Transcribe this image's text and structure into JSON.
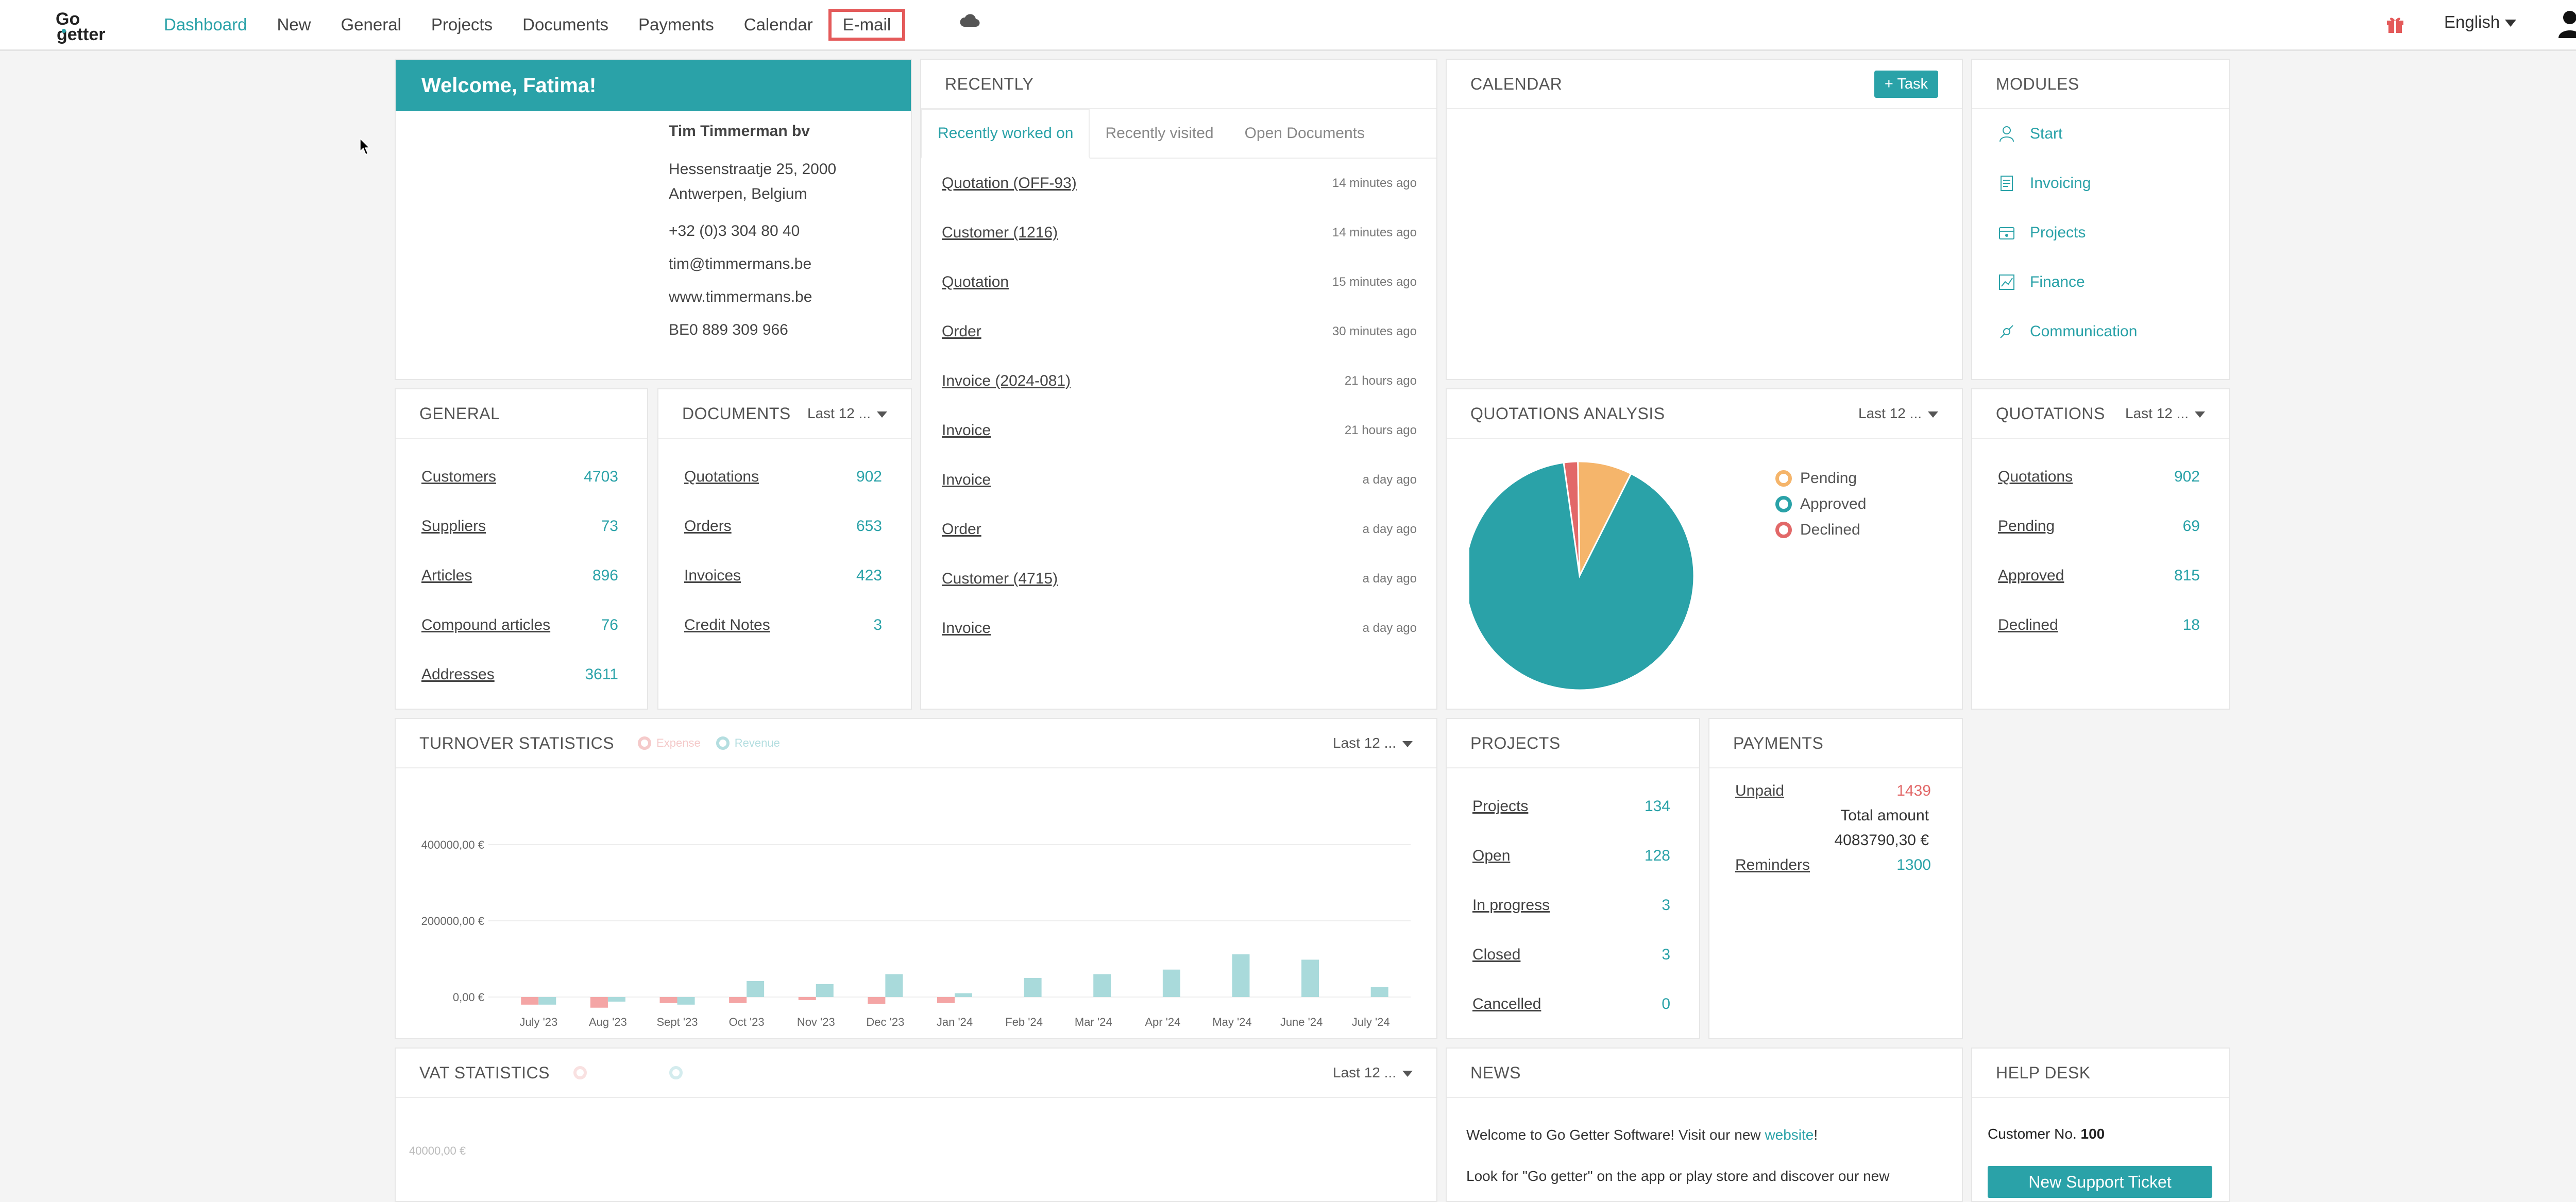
{
  "nav": {
    "items": [
      {
        "label": "Dashboard",
        "active": true
      },
      {
        "label": "New"
      },
      {
        "label": "General"
      },
      {
        "label": "Projects"
      },
      {
        "label": "Documents"
      },
      {
        "label": "Payments"
      },
      {
        "label": "Calendar"
      },
      {
        "label": "E-mail",
        "highlighted": true
      }
    ],
    "language": "English",
    "icons": [
      "cloud-icon",
      "gift-icon",
      "user-icon"
    ]
  },
  "welcome": {
    "title": "Welcome, Fatima!",
    "company": "Tim Timmerman bv",
    "address_line1": "Hessenstraatje 25, 2000",
    "address_line2": "Antwerpen, Belgium",
    "phone": "+32 (0)3 304 80 40",
    "email": "tim@timmermans.be",
    "website": "www.timmermans.be",
    "vat": "BE0 889 309 966"
  },
  "recently": {
    "title": "RECENTLY",
    "tabs": [
      "Recently worked on",
      "Recently visited",
      "Open Documents"
    ],
    "items": [
      {
        "label": "Quotation (OFF-93)",
        "time": "14 minutes ago"
      },
      {
        "label": "Customer (1216)",
        "time": "14 minutes ago"
      },
      {
        "label": "Quotation",
        "time": "15 minutes ago"
      },
      {
        "label": "Order",
        "time": "30 minutes ago"
      },
      {
        "label": "Invoice (2024-081)",
        "time": "21 hours ago"
      },
      {
        "label": "Invoice",
        "time": "21 hours ago"
      },
      {
        "label": "Invoice",
        "time": "a day ago"
      },
      {
        "label": "Order",
        "time": "a day ago"
      },
      {
        "label": "Customer (4715)",
        "time": "a day ago"
      },
      {
        "label": "Invoice",
        "time": "a day ago"
      }
    ]
  },
  "calendar": {
    "title": "CALENDAR",
    "task_button": "+ Task"
  },
  "modules": {
    "title": "MODULES",
    "items": [
      "Start",
      "Invoicing",
      "Projects",
      "Finance",
      "Communication"
    ]
  },
  "general": {
    "title": "GENERAL",
    "rows": [
      {
        "label": "Customers",
        "value": "4703"
      },
      {
        "label": "Suppliers",
        "value": "73"
      },
      {
        "label": "Articles",
        "value": "896"
      },
      {
        "label": "Compound articles",
        "value": "76"
      },
      {
        "label": "Addresses",
        "value": "3611"
      }
    ]
  },
  "documents": {
    "title": "DOCUMENTS",
    "filter": "Last 12 ...",
    "rows": [
      {
        "label": "Quotations",
        "value": "902"
      },
      {
        "label": "Orders",
        "value": "653"
      },
      {
        "label": "Invoices",
        "value": "423"
      },
      {
        "label": "Credit Notes",
        "value": "3"
      }
    ]
  },
  "quotations_analysis": {
    "title": "QUOTATIONS ANALYSIS",
    "filter": "Last 12 ..."
  },
  "quotations": {
    "title": "QUOTATIONS",
    "filter": "Last 12 ...",
    "rows": [
      {
        "label": "Quotations",
        "value": "902"
      },
      {
        "label": "Pending",
        "value": "69"
      },
      {
        "label": "Approved",
        "value": "815"
      },
      {
        "label": "Declined",
        "value": "18"
      }
    ]
  },
  "turnover": {
    "title": "TURNOVER STATISTICS",
    "filter": "Last 12 ..."
  },
  "projects": {
    "title": "PROJECTS",
    "rows": [
      {
        "label": "Projects",
        "value": "134"
      },
      {
        "label": "Open",
        "value": "128"
      },
      {
        "label": "In progress",
        "value": "3"
      },
      {
        "label": "Closed",
        "value": "3"
      },
      {
        "label": "Cancelled",
        "value": "0"
      }
    ]
  },
  "payments": {
    "title": "PAYMENTS",
    "unpaid_label": "Unpaid",
    "unpaid_value": "1439",
    "total_label": "Total amount",
    "total_value": "4083790,30 €",
    "reminders_label": "Reminders",
    "reminders_value": "1300"
  },
  "vat": {
    "title": "VAT STATISTICS",
    "filter": "Last 12 ..."
  },
  "news": {
    "title": "NEWS",
    "line1_pre": "Welcome to Go Getter Software! Visit our new ",
    "line1_link": "website",
    "line1_post": "!",
    "line2": "Look for \"Go getter\" on the app or play store and discover our new"
  },
  "helpdesk": {
    "title": "HELP DESK",
    "customer_label": "Customer No.",
    "customer_no": "100",
    "button": "New Support Ticket"
  },
  "chart_data": [
    {
      "type": "pie",
      "title": "QUOTATIONS ANALYSIS",
      "categories": [
        "Pending",
        "Approved",
        "Declined"
      ],
      "values": [
        69,
        815,
        18
      ],
      "colors": [
        "#f5b56b",
        "#2aa2a8",
        "#e26868"
      ],
      "legend": "right"
    },
    {
      "type": "bar",
      "title": "TURNOVER STATISTICS",
      "categories": [
        "July '23",
        "Aug '23",
        "Sept '23",
        "Oct '23",
        "Nov '23",
        "Dec '23",
        "Jan '24",
        "Feb '24",
        "Mar '24",
        "Apr '24",
        "May '24",
        "June '24",
        "July '24"
      ],
      "series": [
        {
          "name": "Expense",
          "values": [
            -20000,
            -28000,
            -16000,
            -16000,
            -8000,
            -18000,
            -16000,
            0,
            0,
            0,
            0,
            0,
            0
          ],
          "color": "#f4a5a5"
        },
        {
          "name": "Revenue",
          "values": [
            -20000,
            -12000,
            -20000,
            42000,
            34000,
            60000,
            10000,
            50000,
            60000,
            72000,
            112000,
            98000,
            26000
          ],
          "color": "#a9dadb"
        }
      ],
      "yticks": [
        "400000,00 €",
        "200000,00 €",
        "0,00 €"
      ],
      "ylim": [
        -30000,
        420000
      ],
      "grid": true,
      "legend": "top"
    },
    {
      "type": "bar",
      "title": "VAT STATISTICS",
      "categories": [],
      "series": [],
      "yticks": [
        "40000,00 €"
      ],
      "legend": "top"
    }
  ]
}
